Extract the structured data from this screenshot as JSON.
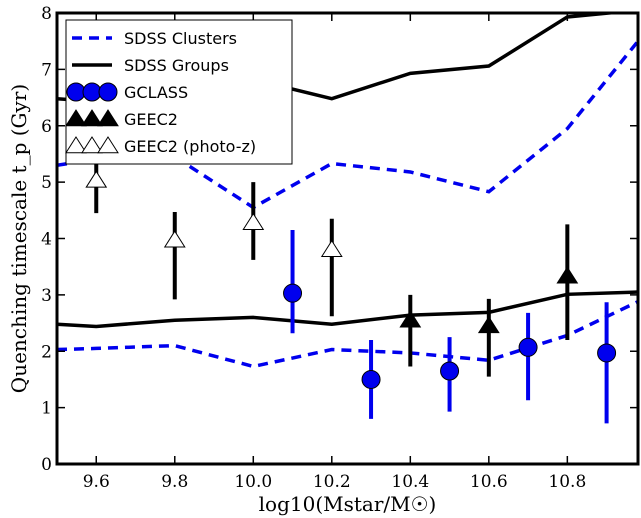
{
  "chart_data": {
    "type": "line",
    "xlabel": "log10(Mstar/M☉)",
    "ylabel": "Quenching timescale t_p (Gyr)",
    "xlim": [
      9.5,
      10.98
    ],
    "ylim": [
      0,
      8
    ],
    "xticks": [
      "9.6",
      "9.8",
      "10.0",
      "10.2",
      "10.4",
      "10.6",
      "10.8"
    ],
    "yticks": [
      "0",
      "1",
      "2",
      "3",
      "4",
      "5",
      "6",
      "7",
      "8"
    ],
    "legend_position": "top-left",
    "colors": {
      "blue": "#0000ee",
      "black": "#000000"
    },
    "series": [
      {
        "name": "SDSS Clusters",
        "style": "dashed-blue",
        "lines": [
          {
            "x": [
              9.5,
              9.6,
              9.8,
              10.0,
              10.2,
              10.4,
              10.6,
              10.8,
              10.98
            ],
            "y": [
              5.3,
              5.4,
              5.45,
              4.55,
              5.33,
              5.18,
              4.83,
              5.95,
              7.5
            ]
          },
          {
            "x": [
              9.5,
              9.6,
              9.8,
              10.0,
              10.2,
              10.4,
              10.6,
              10.8,
              10.98
            ],
            "y": [
              2.03,
              2.05,
              2.1,
              1.73,
              2.03,
              1.97,
              1.84,
              2.28,
              2.88
            ]
          }
        ]
      },
      {
        "name": "SDSS Groups",
        "style": "solid-black",
        "lines": [
          {
            "x": [
              9.5,
              9.6,
              9.8,
              10.0,
              10.2,
              10.4,
              10.6,
              10.8,
              10.98
            ],
            "y": [
              6.48,
              6.43,
              6.7,
              6.82,
              6.48,
              6.93,
              7.06,
              7.93,
              8.05
            ]
          },
          {
            "x": [
              9.5,
              9.6,
              9.8,
              10.0,
              10.2,
              10.4,
              10.6,
              10.8,
              10.98
            ],
            "y": [
              2.48,
              2.44,
              2.55,
              2.6,
              2.48,
              2.64,
              2.69,
              3.01,
              3.05
            ]
          }
        ]
      },
      {
        "name": "GCLASS",
        "marker": "circle",
        "color": "#0000ee",
        "points": [
          {
            "x": 10.1,
            "y": 3.03,
            "lo": 2.32,
            "hi": 4.15
          },
          {
            "x": 10.3,
            "y": 1.5,
            "lo": 0.8,
            "hi": 2.2
          },
          {
            "x": 10.5,
            "y": 1.65,
            "lo": 0.93,
            "hi": 2.25
          },
          {
            "x": 10.7,
            "y": 2.07,
            "lo": 1.13,
            "hi": 2.68
          },
          {
            "x": 10.9,
            "y": 1.97,
            "lo": 0.72,
            "hi": 2.87
          }
        ]
      },
      {
        "name": "GEEC2",
        "marker": "triangle-filled",
        "color": "#000000",
        "points": [
          {
            "x": 10.4,
            "y": 2.55,
            "lo": 1.73,
            "hi": 3.0
          },
          {
            "x": 10.6,
            "y": 2.45,
            "lo": 1.55,
            "hi": 2.93
          },
          {
            "x": 10.8,
            "y": 3.33,
            "lo": 2.2,
            "hi": 4.25
          }
        ]
      },
      {
        "name": "GEEC2 (photo-z)",
        "marker": "triangle-open",
        "color": "#000000",
        "points": [
          {
            "x": 9.6,
            "y": 5.03,
            "lo": 4.45,
            "hi": 5.55
          },
          {
            "x": 9.8,
            "y": 3.97,
            "lo": 2.92,
            "hi": 4.47
          },
          {
            "x": 10.0,
            "y": 4.28,
            "lo": 3.62,
            "hi": 5.0
          },
          {
            "x": 10.2,
            "y": 3.8,
            "lo": 2.62,
            "hi": 4.35
          }
        ]
      }
    ]
  }
}
